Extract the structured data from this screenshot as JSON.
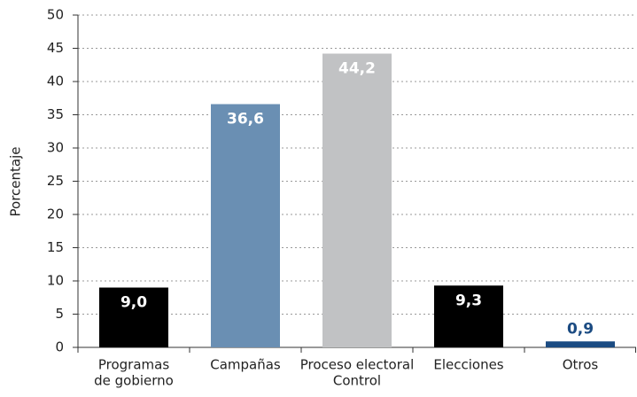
{
  "chart_data": {
    "type": "bar",
    "y_label": "Porcentaje",
    "categories": [
      [
        "Programas",
        "de gobierno"
      ],
      [
        "Campañas"
      ],
      [
        "Proceso electoral",
        "Control"
      ],
      [
        "Elecciones"
      ],
      [
        "Otros"
      ]
    ],
    "values": [
      9.0,
      36.6,
      44.2,
      9.3,
      0.9
    ],
    "value_labels": [
      "9,0",
      "36,6",
      "44,2",
      "9,3",
      "0,9"
    ],
    "colors": [
      "#000000",
      "#6a8fb3",
      "#c1c2c4",
      "#000000",
      "#1b4b82"
    ],
    "ylim": [
      0,
      50
    ],
    "yticks": [
      0,
      5,
      10,
      15,
      20,
      25,
      30,
      35,
      40,
      45,
      50
    ],
    "grid": true
  }
}
